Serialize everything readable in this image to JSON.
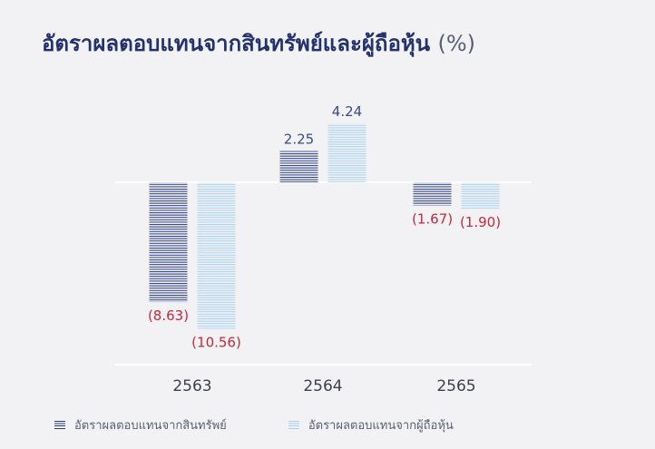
{
  "title": "อัตราผลตอบแทนจากสินทรัพย์และผู้ถือหุ้น",
  "title_unit": "(%)",
  "colors": {
    "asset": "#273a83",
    "equity": "#a8d0f0",
    "positive_label": "#3a4a86",
    "negative_label": "#c8283c"
  },
  "chart_data": {
    "type": "bar",
    "title": "อัตราผลตอบแทนจากสินทรัพย์และผู้ถือหุ้น (%)",
    "categories": [
      "2563",
      "2564",
      "2565"
    ],
    "series": [
      {
        "name": "อัตราผลตอบแทนจากสินทรัพย์",
        "values": [
          -8.63,
          2.25,
          -1.67
        ],
        "labels": [
          "(8.63)",
          "2.25",
          "(1.67)"
        ]
      },
      {
        "name": "อัตราผลตอบแทนจากผู้ถือหุ้น",
        "values": [
          -10.56,
          4.24,
          -1.9
        ],
        "labels": [
          "(10.56)",
          "4.24",
          "(1.90)"
        ]
      }
    ],
    "ylim": [
      -13.05,
      5.0
    ],
    "grid": false,
    "legend_position": "bottom-left",
    "bar_pattern": "horizontal-stripes"
  }
}
